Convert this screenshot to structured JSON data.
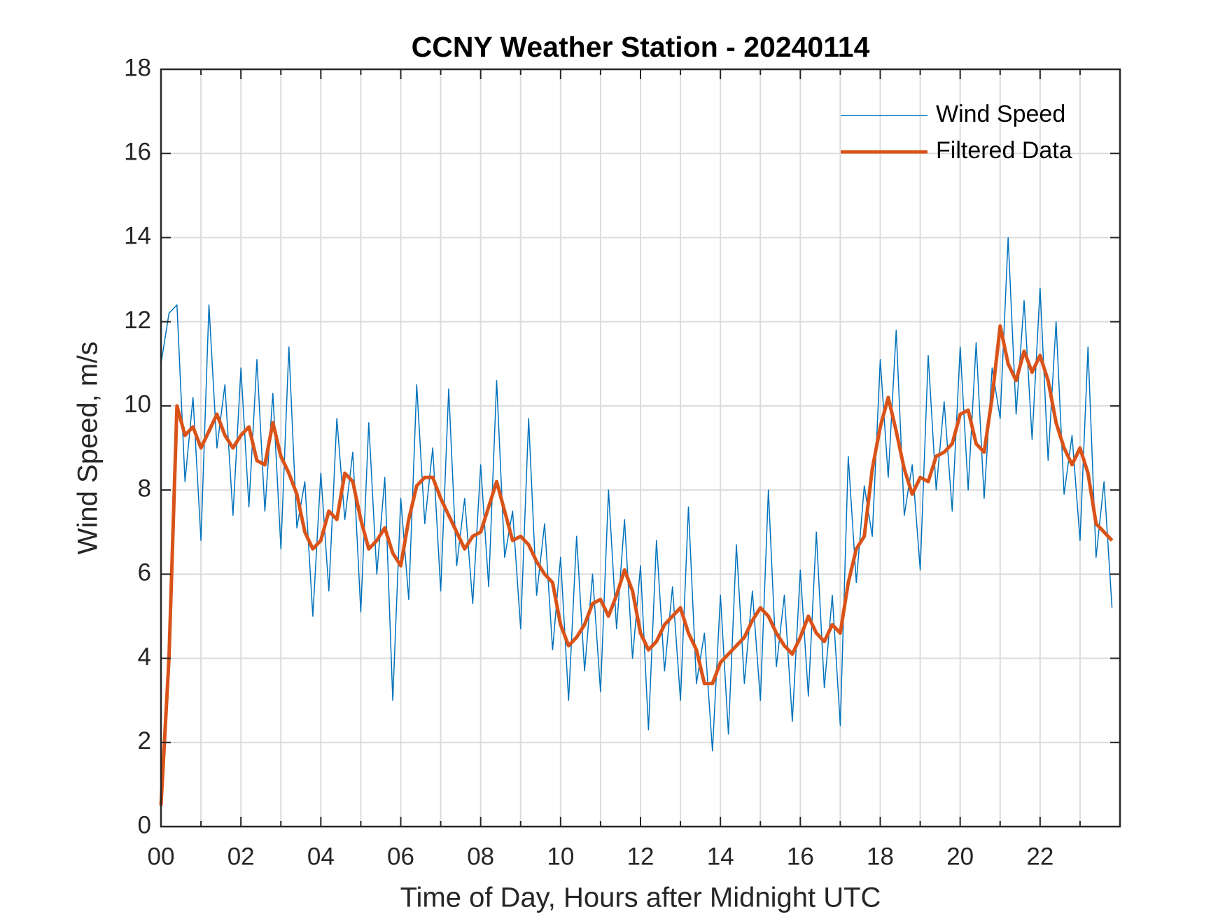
{
  "chart_data": {
    "type": "line",
    "title": "CCNY Weather Station - 20240114",
    "x_label": "Time of Day, Hours after Midnight UTC",
    "y_label": "Wind Speed, m/s",
    "x": [
      0,
      0.2,
      0.4,
      0.6,
      0.8,
      1.0,
      1.2,
      1.4,
      1.6,
      1.8,
      2.0,
      2.2,
      2.4,
      2.6,
      2.8,
      3.0,
      3.2,
      3.4,
      3.6,
      3.8,
      4.0,
      4.2,
      4.4,
      4.6,
      4.8,
      5.0,
      5.2,
      5.4,
      5.6,
      5.8,
      6.0,
      6.2,
      6.4,
      6.6,
      6.8,
      7.0,
      7.2,
      7.4,
      7.6,
      7.8,
      8.0,
      8.2,
      8.4,
      8.6,
      8.8,
      9.0,
      9.2,
      9.4,
      9.6,
      9.8,
      10.0,
      10.2,
      10.4,
      10.6,
      10.8,
      11.0,
      11.2,
      11.4,
      11.6,
      11.8,
      12.0,
      12.2,
      12.4,
      12.6,
      12.8,
      13.0,
      13.2,
      13.4,
      13.6,
      13.8,
      14.0,
      14.2,
      14.4,
      14.6,
      14.8,
      15.0,
      15.2,
      15.4,
      15.6,
      15.8,
      16.0,
      16.2,
      16.4,
      16.6,
      16.8,
      17.0,
      17.2,
      17.4,
      17.6,
      17.8,
      18.0,
      18.2,
      18.4,
      18.6,
      18.8,
      19.0,
      19.2,
      19.4,
      19.6,
      19.8,
      20.0,
      20.2,
      20.4,
      20.6,
      20.8,
      21.0,
      21.2,
      21.4,
      21.6,
      21.8,
      22.0,
      22.2,
      22.4,
      22.6,
      22.8,
      23.0,
      23.2,
      23.4,
      23.6,
      23.8
    ],
    "series": [
      {
        "name": "Wind Speed",
        "color": "#0072bd",
        "width": 1.5,
        "values": [
          11.0,
          12.2,
          12.4,
          8.2,
          10.2,
          6.8,
          12.4,
          9.0,
          10.5,
          7.4,
          10.9,
          7.6,
          11.1,
          7.5,
          10.3,
          6.6,
          11.4,
          7.1,
          8.2,
          5.0,
          8.4,
          5.6,
          9.7,
          7.3,
          8.9,
          5.1,
          9.6,
          6.0,
          8.3,
          3.0,
          7.8,
          5.4,
          10.5,
          7.2,
          9.0,
          5.6,
          10.4,
          6.2,
          7.8,
          5.3,
          8.6,
          5.7,
          10.6,
          6.4,
          7.5,
          4.7,
          9.7,
          5.5,
          7.2,
          4.2,
          6.4,
          3.0,
          6.9,
          3.7,
          6.0,
          3.2,
          8.0,
          4.7,
          7.3,
          4.0,
          6.2,
          2.3,
          6.8,
          3.7,
          5.7,
          3.0,
          7.6,
          3.4,
          4.6,
          1.8,
          5.5,
          2.2,
          6.7,
          3.4,
          5.6,
          3.0,
          8.0,
          3.8,
          5.5,
          2.5,
          6.1,
          3.1,
          7.0,
          3.3,
          5.5,
          2.4,
          8.8,
          5.8,
          8.1,
          6.9,
          11.1,
          8.3,
          11.8,
          7.4,
          8.6,
          6.1,
          11.2,
          8.0,
          10.1,
          7.5,
          11.4,
          8.0,
          11.5,
          7.8,
          10.9,
          9.7,
          14.0,
          9.8,
          12.5,
          9.2,
          12.8,
          8.7,
          12.0,
          7.9,
          9.3,
          6.8,
          11.4,
          6.4,
          8.2,
          5.2
        ]
      },
      {
        "name": "Filtered Data",
        "color": "#d95319",
        "width": 5,
        "values": [
          0.5,
          4,
          10,
          9.3,
          9.5,
          9.0,
          9.4,
          9.8,
          9.3,
          9.0,
          9.3,
          9.5,
          8.7,
          8.6,
          9.6,
          8.8,
          8.4,
          7.9,
          7.0,
          6.6,
          6.8,
          7.5,
          7.3,
          8.4,
          8.2,
          7.3,
          6.6,
          6.8,
          7.1,
          6.5,
          6.2,
          7.3,
          8.1,
          8.3,
          8.3,
          7.8,
          7.4,
          7.0,
          6.6,
          6.9,
          7.0,
          7.6,
          8.2,
          7.5,
          6.8,
          6.9,
          6.7,
          6.3,
          6.0,
          5.8,
          4.8,
          4.3,
          4.5,
          4.8,
          5.3,
          5.4,
          5.0,
          5.5,
          6.1,
          5.6,
          4.6,
          4.2,
          4.4,
          4.8,
          5.0,
          5.2,
          4.6,
          4.2,
          3.4,
          3.4,
          3.9,
          4.1,
          4.3,
          4.5,
          4.9,
          5.2,
          5.0,
          4.6,
          4.3,
          4.1,
          4.5,
          5.0,
          4.6,
          4.4,
          4.8,
          4.6,
          5.8,
          6.6,
          6.9,
          8.5,
          9.5,
          10.2,
          9.4,
          8.5,
          7.9,
          8.3,
          8.2,
          8.8,
          8.9,
          9.1,
          9.8,
          9.9,
          9.1,
          8.9,
          10.2,
          11.9,
          11.0,
          10.6,
          11.3,
          10.8,
          11.2,
          10.6,
          9.6,
          9.0,
          8.6,
          9.0,
          8.4,
          7.2,
          7.0,
          6.8
        ]
      }
    ],
    "xlim": [
      0,
      24
    ],
    "ylim": [
      0,
      18
    ],
    "xticks": [
      {
        "value": 0,
        "label": "00"
      },
      {
        "value": 2,
        "label": "02"
      },
      {
        "value": 4,
        "label": "04"
      },
      {
        "value": 6,
        "label": "06"
      },
      {
        "value": 8,
        "label": "08"
      },
      {
        "value": 10,
        "label": "10"
      },
      {
        "value": 12,
        "label": "12"
      },
      {
        "value": 14,
        "label": "14"
      },
      {
        "value": 16,
        "label": "16"
      },
      {
        "value": 18,
        "label": "18"
      },
      {
        "value": 20,
        "label": "20"
      },
      {
        "value": 22,
        "label": "22"
      }
    ],
    "xminorticks": [
      1,
      3,
      5,
      7,
      9,
      11,
      13,
      15,
      17,
      19,
      21,
      23
    ],
    "yticks": [
      0,
      2,
      4,
      6,
      8,
      10,
      12,
      14,
      16,
      18
    ],
    "grid": true,
    "legend": "upper right"
  }
}
